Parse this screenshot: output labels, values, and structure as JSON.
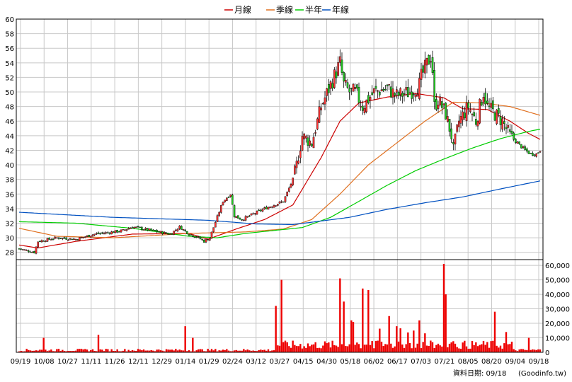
{
  "chart_data": {
    "type": "candlestick",
    "title": "",
    "legend": [
      {
        "name": "月線",
        "color": "#cc0000"
      },
      {
        "name": "季線",
        "color": "#e07020"
      },
      {
        "name": "半年",
        "color": "#00cc00"
      },
      {
        "name": "年線",
        "color": "#0050c0"
      }
    ],
    "legend_position": "top-center",
    "price_axis": {
      "ylim": [
        27,
        60
      ],
      "ticks": [
        28,
        30,
        32,
        34,
        36,
        38,
        40,
        42,
        44,
        46,
        48,
        50,
        52,
        54,
        56,
        58,
        60
      ]
    },
    "volume_axis": {
      "ylim": [
        0,
        62000
      ],
      "ticks": [
        0,
        10000,
        20000,
        30000,
        40000,
        50000,
        60000
      ],
      "tick_labels": [
        "0",
        "10,000",
        "20,000",
        "30,000",
        "40,000",
        "50,000",
        "60,000"
      ]
    },
    "x_tick_labels": [
      "09/19",
      "10/08",
      "10/27",
      "11/11",
      "11/26",
      "12/11",
      "12/29",
      "01/14",
      "01/29",
      "02/24",
      "03/12",
      "03/27",
      "04/15",
      "04/30",
      "05/18",
      "06/02",
      "06/17",
      "07/03",
      "07/21",
      "08/05",
      "08/20",
      "09/04",
      "09/18"
    ],
    "close_anchors": [
      [
        0,
        28.5
      ],
      [
        8,
        28
      ],
      [
        10,
        29.5
      ],
      [
        20,
        30
      ],
      [
        30,
        29.8
      ],
      [
        40,
        30.5
      ],
      [
        50,
        30.8
      ],
      [
        55,
        31
      ],
      [
        60,
        31.5
      ],
      [
        70,
        31
      ],
      [
        80,
        30.5
      ],
      [
        85,
        31.5
      ],
      [
        90,
        30.5
      ],
      [
        95,
        30
      ],
      [
        98,
        29.5
      ],
      [
        101,
        30
      ],
      [
        108,
        35
      ],
      [
        112,
        36
      ],
      [
        114,
        33
      ],
      [
        118,
        32.5
      ],
      [
        130,
        34
      ],
      [
        135,
        34.5
      ],
      [
        140,
        35
      ],
      [
        145,
        38
      ],
      [
        147,
        40
      ],
      [
        150,
        44
      ],
      [
        155,
        43
      ],
      [
        160,
        48
      ],
      [
        165,
        51
      ],
      [
        170,
        54
      ],
      [
        172,
        51
      ],
      [
        175,
        50
      ],
      [
        178,
        50
      ],
      [
        182,
        48
      ],
      [
        185,
        49
      ],
      [
        188,
        50
      ],
      [
        195,
        50.5
      ],
      [
        200,
        49.5
      ],
      [
        207,
        50
      ],
      [
        212,
        51
      ],
      [
        213,
        52
      ],
      [
        218,
        55
      ],
      [
        219,
        53
      ],
      [
        220,
        48
      ],
      [
        222,
        49
      ],
      [
        226,
        47
      ],
      [
        229,
        44
      ],
      [
        230,
        42
      ],
      [
        233,
        46
      ],
      [
        238,
        48
      ],
      [
        242,
        46
      ],
      [
        246,
        50
      ],
      [
        248,
        48
      ],
      [
        252,
        47
      ],
      [
        256,
        46
      ],
      [
        260,
        44
      ],
      [
        264,
        43
      ],
      [
        268,
        42
      ],
      [
        271,
        41.5
      ],
      [
        274,
        41.5
      ],
      [
        276,
        42
      ]
    ],
    "moving_average_anchors": {
      "月線": [
        [
          0,
          29
        ],
        [
          10,
          28.6
        ],
        [
          30,
          29.5
        ],
        [
          60,
          30.5
        ],
        [
          90,
          30.6
        ],
        [
          100,
          29.8
        ],
        [
          115,
          31.2
        ],
        [
          130,
          32.5
        ],
        [
          145,
          34.5
        ],
        [
          160,
          41
        ],
        [
          170,
          46
        ],
        [
          180,
          48.5
        ],
        [
          195,
          49.3
        ],
        [
          210,
          49.8
        ],
        [
          225,
          49.2
        ],
        [
          235,
          47.7
        ],
        [
          248,
          47.6
        ],
        [
          260,
          46
        ],
        [
          270,
          44.3
        ],
        [
          276,
          43.5
        ]
      ],
      "季線": [
        [
          0,
          31.3
        ],
        [
          20,
          30.2
        ],
        [
          50,
          30
        ],
        [
          90,
          30.6
        ],
        [
          120,
          30.8
        ],
        [
          140,
          31.2
        ],
        [
          155,
          32.5
        ],
        [
          170,
          36
        ],
        [
          185,
          40
        ],
        [
          200,
          43
        ],
        [
          215,
          46
        ],
        [
          230,
          48.6
        ],
        [
          245,
          48.5
        ],
        [
          260,
          48
        ],
        [
          276,
          46.8
        ]
      ],
      "半年": [
        [
          0,
          32.2
        ],
        [
          30,
          32
        ],
        [
          60,
          31.3
        ],
        [
          90,
          30.2
        ],
        [
          105,
          30
        ],
        [
          120,
          30.6
        ],
        [
          150,
          31.4
        ],
        [
          165,
          32.8
        ],
        [
          180,
          35
        ],
        [
          195,
          37.2
        ],
        [
          210,
          39.2
        ],
        [
          225,
          40.8
        ],
        [
          240,
          42.3
        ],
        [
          255,
          43.6
        ],
        [
          270,
          44.6
        ],
        [
          276,
          44.9
        ]
      ],
      "年線": [
        [
          0,
          33.5
        ],
        [
          50,
          32.8
        ],
        [
          100,
          32.4
        ],
        [
          125,
          31.9
        ],
        [
          145,
          31.8
        ],
        [
          160,
          32.3
        ],
        [
          175,
          32.8
        ],
        [
          195,
          33.9
        ],
        [
          215,
          34.8
        ],
        [
          235,
          35.6
        ],
        [
          255,
          36.7
        ],
        [
          276,
          37.8
        ]
      ]
    },
    "volume_spikes": [
      [
        13,
        10000
      ],
      [
        42,
        12000
      ],
      [
        88,
        18000
      ],
      [
        92,
        10000
      ],
      [
        136,
        32000
      ],
      [
        139,
        50000
      ],
      [
        170,
        51000
      ],
      [
        172,
        35000
      ],
      [
        176,
        22000
      ],
      [
        182,
        44000
      ],
      [
        185,
        43000
      ],
      [
        196,
        25000
      ],
      [
        200,
        18000
      ],
      [
        212,
        22000
      ],
      [
        225,
        61000
      ],
      [
        226,
        40000
      ],
      [
        252,
        28000
      ],
      [
        258,
        14000
      ],
      [
        270,
        10000
      ]
    ],
    "source_label": "資料日期: 09/18",
    "site_label": "(Goodinfo.tw)"
  }
}
